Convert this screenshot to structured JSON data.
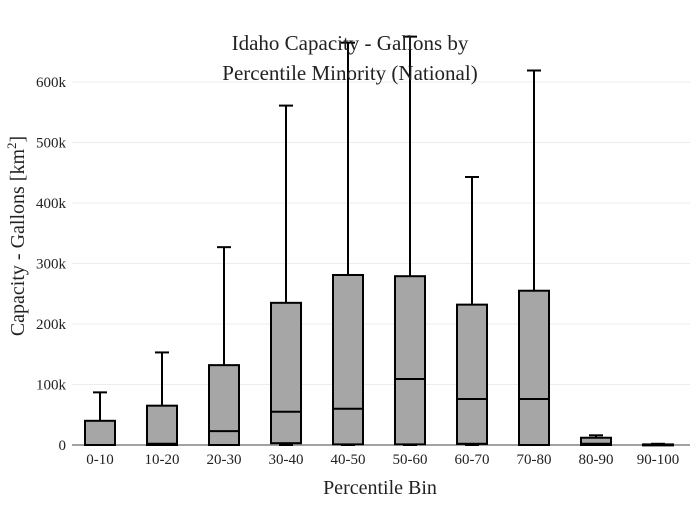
{
  "chart_data": {
    "type": "box",
    "title_line1": "Idaho Capacity - Gallons by",
    "title_line2": "Percentile Minority (National)",
    "xlabel": "Percentile Bin",
    "ylabel": "Capacity - Gallons  [km",
    "ylabel_sup": "2",
    "ylabel_close": "]",
    "ylim": [
      0,
      660000
    ],
    "yticks": [
      0,
      100000,
      200000,
      300000,
      400000,
      500000,
      600000
    ],
    "ytick_labels": [
      "0",
      "100k",
      "200k",
      "300k",
      "400k",
      "500k",
      "600k"
    ],
    "grid": true,
    "categories": [
      "0-10",
      "10-20",
      "20-30",
      "30-40",
      "40-50",
      "50-60",
      "60-70",
      "70-80",
      "80-90",
      "90-100"
    ],
    "boxes": [
      {
        "min": 0,
        "q1": 0,
        "median": 0,
        "q3": 40000,
        "max": 87000
      },
      {
        "min": 0,
        "q1": 0,
        "median": 2000,
        "q3": 65000,
        "max": 153000
      },
      {
        "min": 0,
        "q1": 0,
        "median": 23000,
        "q3": 132000,
        "max": 327000
      },
      {
        "min": 0,
        "q1": 3000,
        "median": 55000,
        "q3": 235000,
        "max": 561000
      },
      {
        "min": 0,
        "q1": 1000,
        "median": 60000,
        "q3": 281000,
        "max": 665000
      },
      {
        "min": 0,
        "q1": 1000,
        "median": 109000,
        "q3": 279000,
        "max": 675000
      },
      {
        "min": 0,
        "q1": 2000,
        "median": 76000,
        "q3": 232000,
        "max": 443000
      },
      {
        "min": 0,
        "q1": 0,
        "median": 76000,
        "q3": 255000,
        "max": 619000
      },
      {
        "min": 0,
        "q1": 0,
        "median": 2000,
        "q3": 12000,
        "max": 16000
      },
      {
        "min": 0,
        "q1": 0,
        "median": 0,
        "q3": 1000,
        "max": 2000
      }
    ],
    "box_color": "#a6a6a6",
    "line_color": "#000000"
  }
}
